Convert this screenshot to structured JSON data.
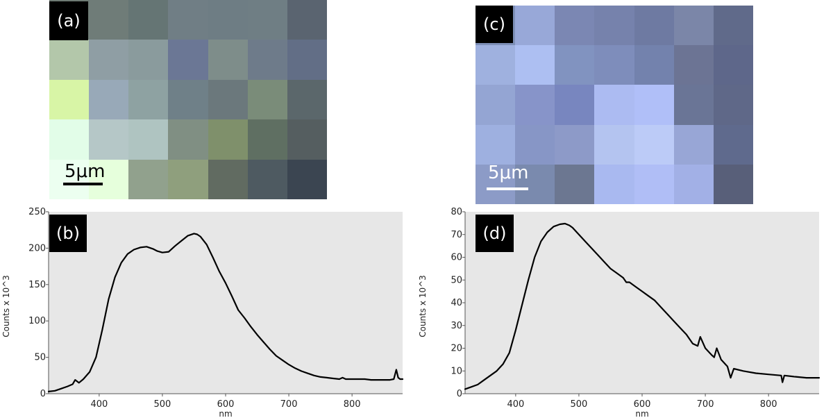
{
  "labels": {
    "a": "(a)",
    "b": "(b)",
    "c": "(c)",
    "d": "(d)"
  },
  "scale_bar_text": "5μm",
  "map_a": {
    "cols": 7,
    "rows": 5,
    "colors": [
      [
        "#6d7a73",
        "#6f7c78",
        "#657574",
        "#707e85",
        "#6e7d84",
        "#6f7e84",
        "#5a6470"
      ],
      [
        "#b3c7aa",
        "#8f9ea4",
        "#8a9b9d",
        "#6b7795",
        "#7e8d8a",
        "#6e7b8a",
        "#626e86"
      ],
      [
        "#d8f5a6",
        "#98a9b8",
        "#8ea2a2",
        "#6f8088",
        "#6b787c",
        "#7a8c79",
        "#5b676b"
      ],
      [
        "#e2fde8",
        "#b5c7c7",
        "#afc4c1",
        "#808f83",
        "#7f906b",
        "#5f6f62",
        "#555e60"
      ],
      [
        "#ecfff0",
        "#e6ffdc",
        "#91a18d",
        "#8f9f7d",
        "#616b61",
        "#4e5a61",
        "#3b4551"
      ]
    ]
  },
  "map_c": {
    "cols": 7,
    "rows": 5,
    "colors": [
      [
        "#7d8fb7",
        "#98a8d8",
        "#7b87b3",
        "#7682ac",
        "#6e7aa2",
        "#7b86a8",
        "#606a8a"
      ],
      [
        "#9fb1df",
        "#adbff2",
        "#8193c0",
        "#7e8dbb",
        "#7382ad",
        "#6c7494",
        "#5e678a"
      ],
      [
        "#94a5d3",
        "#8794c9",
        "#7886bf",
        "#acbbf2",
        "#b0bff8",
        "#6a7596",
        "#5f6888"
      ],
      [
        "#9eb0e0",
        "#8796c6",
        "#8d9ac8",
        "#b4c4f0",
        "#bccbf7",
        "#98a6d6",
        "#5f6a8d"
      ],
      [
        "#8c9bc7",
        "#7a8aae",
        "#6c7791",
        "#a9b9f0",
        "#b0bef6",
        "#a2b0e6",
        "#585f79"
      ]
    ]
  },
  "chart_data": [
    {
      "type": "line",
      "panel": "(b)",
      "xlabel": "nm",
      "ylabel": "Counts x 10^3",
      "xlim": [
        320,
        880
      ],
      "ylim": [
        0,
        250
      ],
      "xticks": [
        400,
        500,
        600,
        700,
        800
      ],
      "yticks": [
        0,
        50,
        100,
        150,
        200,
        250
      ],
      "background": "#e7e7e7",
      "series": [
        {
          "x": [
            320,
            330,
            340,
            350,
            358,
            362,
            368,
            375,
            385,
            395,
            405,
            415,
            425,
            435,
            445,
            455,
            465,
            475,
            485,
            492,
            500,
            510,
            520,
            530,
            540,
            550,
            555,
            560,
            570,
            580,
            590,
            600,
            610,
            620,
            630,
            640,
            650,
            660,
            670,
            680,
            690,
            700,
            710,
            720,
            730,
            740,
            750,
            760,
            770,
            780,
            785,
            790,
            800,
            810,
            820,
            830,
            840,
            850,
            860,
            866,
            870,
            873,
            876,
            880
          ],
          "y": [
            3,
            4,
            7,
            10,
            13,
            19,
            15,
            20,
            30,
            50,
            88,
            130,
            160,
            180,
            192,
            198,
            201,
            202,
            199,
            196,
            194,
            195,
            203,
            210,
            217,
            220,
            219,
            216,
            205,
            187,
            168,
            152,
            134,
            115,
            104,
            92,
            81,
            71,
            61,
            52,
            46,
            40,
            35,
            31,
            28,
            25,
            23,
            22,
            21,
            20,
            22,
            20,
            20,
            20,
            20,
            19,
            19,
            19,
            19,
            20,
            33,
            22,
            20,
            20
          ]
        }
      ]
    },
    {
      "type": "line",
      "panel": "(d)",
      "xlabel": "nm",
      "ylabel": "Counts x 10^3",
      "xlim": [
        320,
        880
      ],
      "ylim": [
        0,
        80
      ],
      "xticks": [
        400,
        500,
        600,
        700,
        800
      ],
      "yticks": [
        0,
        10,
        20,
        30,
        40,
        50,
        60,
        70,
        80
      ],
      "background": "#e7e7e7",
      "series": [
        {
          "x": [
            320,
            330,
            340,
            350,
            360,
            370,
            380,
            390,
            400,
            410,
            420,
            430,
            440,
            450,
            460,
            470,
            478,
            485,
            490,
            500,
            510,
            520,
            530,
            540,
            550,
            560,
            570,
            575,
            580,
            590,
            600,
            610,
            620,
            630,
            640,
            650,
            660,
            670,
            680,
            688,
            692,
            700,
            710,
            714,
            718,
            725,
            735,
            740,
            745,
            760,
            780,
            800,
            820,
            822,
            825,
            840,
            860,
            880
          ],
          "y": [
            2,
            3,
            4,
            6,
            8,
            10,
            13,
            18,
            28,
            39,
            50,
            60,
            67,
            71,
            73.5,
            74.5,
            74.8,
            74,
            73,
            70,
            67,
            64,
            61,
            58,
            55,
            53,
            51,
            49,
            49,
            47,
            45,
            43,
            41,
            38,
            35,
            32,
            29,
            26,
            22,
            21,
            25,
            20,
            17,
            16,
            20,
            15,
            12,
            7,
            11,
            10,
            9,
            8.5,
            8,
            5,
            8,
            7.5,
            7,
            7
          ]
        }
      ]
    }
  ]
}
